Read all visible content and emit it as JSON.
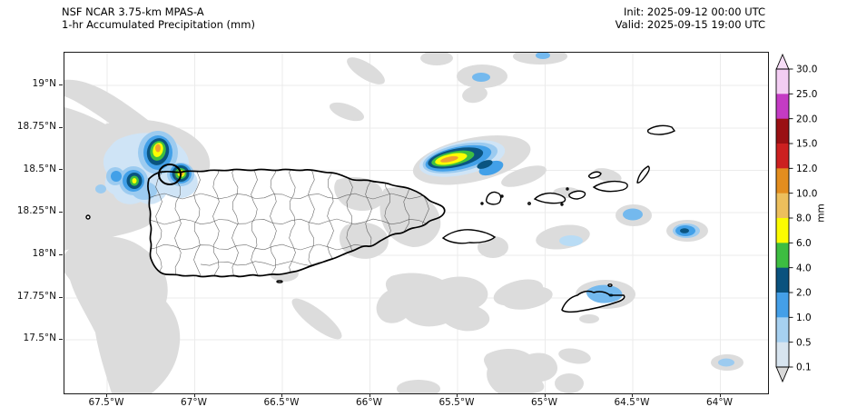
{
  "header": {
    "title_line1": "NSF NCAR 3.75-km MPAS-A",
    "title_line2": "1-hr Accumulated Precipitation (mm)",
    "init": "Init: 2025-09-12 00:00 UTC",
    "valid": "Valid: 2025-09-15 19:00 UTC"
  },
  "axes": {
    "x_tick_labels": [
      "67.5°W",
      "67°W",
      "66.5°W",
      "66°W",
      "65.5°W",
      "65°W",
      "64.5°W",
      "64°W"
    ],
    "y_tick_labels": [
      "19°N",
      "18.75°N",
      "18.5°N",
      "18.25°N",
      "18°N",
      "17.75°N",
      "17.5°N"
    ]
  },
  "colorbar": {
    "unit_label": "mm",
    "tick_labels_top_to_bottom": [
      "30.0",
      "25.0",
      "20.0",
      "15.0",
      "12.0",
      "10.0",
      "8.0",
      "6.0",
      "4.0",
      "2.0",
      "1.0",
      "0.5",
      "0.1"
    ],
    "segment_colors_top_to_bottom": [
      "#f3cdf3",
      "#c43bc4",
      "#9a1013",
      "#cc2020",
      "#e38d1e",
      "#edbf5c",
      "#fbfb00",
      "#3dbd41",
      "#0a527e",
      "#449fe8",
      "#a6d0f0",
      "#d7e4ef"
    ],
    "over_arrow_color": "#f6dcf6",
    "under_arrow_color": "#d9d9d9"
  },
  "chart_data": {
    "type": "heatmap",
    "title": "NSF NCAR 3.75-km MPAS-A",
    "subtitle": "1-hr Accumulated Precipitation (mm)",
    "init_time": "2025-09-12 00:00 UTC",
    "valid_time": "2025-09-15 19:00 UTC",
    "units": "mm",
    "region": "Puerto Rico and the Virgin Islands",
    "x_axis_ticks_deg_w": [
      67.5,
      67.0,
      66.5,
      66.0,
      65.5,
      65.0,
      64.5,
      64.0
    ],
    "y_axis_ticks_deg_n": [
      19.0,
      18.75,
      18.5,
      18.25,
      18.0,
      17.75,
      17.5
    ],
    "x_range_deg_w": [
      67.74,
      63.73
    ],
    "y_range_deg_n": [
      17.18,
      19.19
    ],
    "grid": true,
    "contour_levels_mm": [
      0.1,
      0.5,
      1,
      2,
      4,
      6,
      8,
      10,
      12,
      15,
      20,
      25,
      30
    ],
    "colorbar_extends": "both",
    "precip_features": [
      {
        "name": "convective cluster northwest of Puerto Rico",
        "lon_w": 67.21,
        "lat_n": 18.61,
        "peak_mm": 10
      },
      {
        "name": "cell on northwest Puerto Rico coast near Aguadilla",
        "lon_w": 67.09,
        "lat_n": 18.48,
        "peak_mm": 10
      },
      {
        "name": "cell in Mona Passage west of Puerto Rico",
        "lon_w": 67.35,
        "lat_n": 18.44,
        "peak_mm": 6
      },
      {
        "name": "elongated band northeast of Puerto Rico",
        "lon_w": 65.53,
        "lat_n": 18.58,
        "peak_mm": 12
      },
      {
        "name": "cell east of the Virgin Islands",
        "lon_w": 64.19,
        "lat_n": 18.14,
        "peak_mm": 4
      },
      {
        "name": "cell south of Tortola",
        "lon_w": 64.49,
        "lat_n": 18.23,
        "peak_mm": 2
      },
      {
        "name": "light cell east-southeast of Vieques",
        "lon_w": 64.86,
        "lat_n": 18.08,
        "peak_mm": 1
      },
      {
        "name": "showers over northeast St. Croix",
        "lon_w": 64.66,
        "lat_n": 17.77,
        "peak_mm": 2
      },
      {
        "name": "small cell near north edge of domain",
        "lon_w": 65.37,
        "lat_n": 19.05,
        "peak_mm": 2
      },
      {
        "name": "small cell in far southeast corner",
        "lon_w": 63.96,
        "lat_n": 17.37,
        "peak_mm": 1
      },
      {
        "name": "widespread light precipitation under 0.5 mm over Mona Passage and waters south of Puerto Rico",
        "lon_w": 67.2,
        "lat_n": 17.9,
        "peak_mm": 0.5
      }
    ]
  },
  "map_style": {
    "background_color": "#ffffff",
    "land_color": "#ffffff",
    "coastline_color": "#000000",
    "municipal_boundary_color": "#4f4f4f",
    "gridline_color": "#ebebeb",
    "light_precip_gray": "#dcdcdc"
  }
}
